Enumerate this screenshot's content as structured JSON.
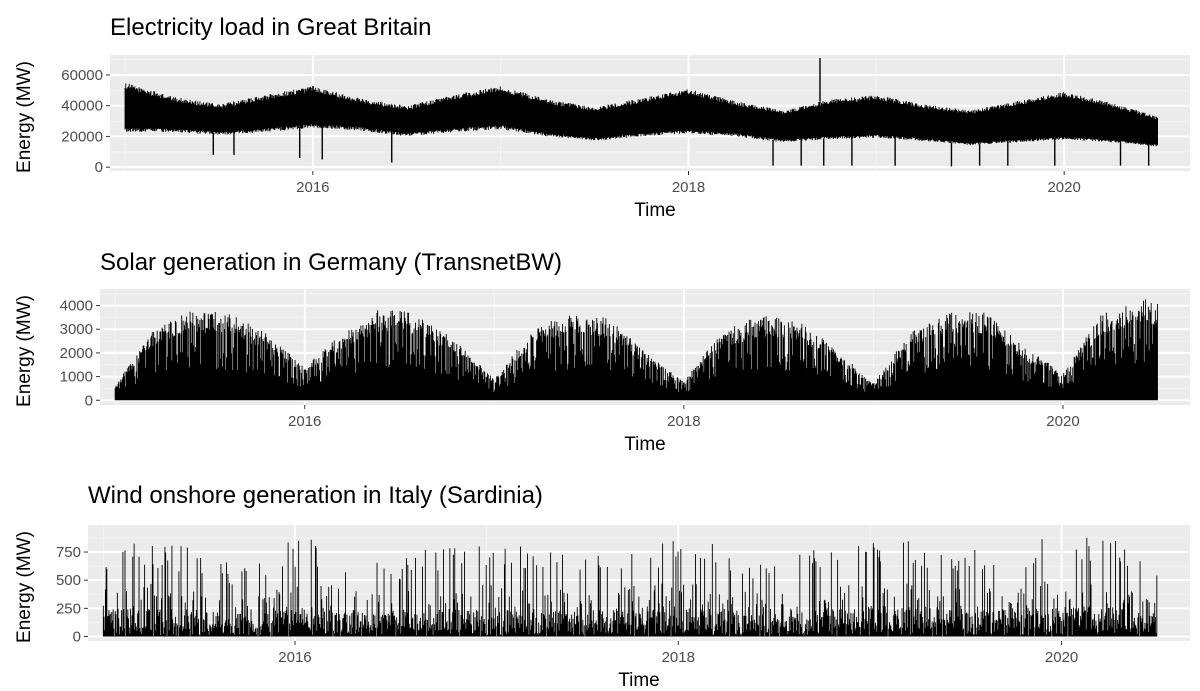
{
  "chart_data": [
    {
      "type": "line",
      "title": "Electricity load in Great Britain",
      "xlabel": "Time",
      "ylabel": "Energy (MW)",
      "xlim": [
        2014.92,
        2020.67
      ],
      "ylim": [
        -2500,
        73000
      ],
      "x_ticks": [
        2016,
        2018,
        2020
      ],
      "y_ticks": [
        0,
        20000,
        40000,
        60000
      ],
      "y_tick_labels": [
        "0",
        "20000",
        "40000",
        "60000"
      ],
      "grid": true,
      "series": [
        {
          "x": [
            2015.0,
            2015.25,
            2015.5,
            2015.75,
            2016.0,
            2016.25,
            2016.5,
            2016.75,
            2017.0,
            2017.25,
            2017.5,
            2017.75,
            2018.0,
            2018.25,
            2018.5,
            2018.75,
            2019.0,
            2019.25,
            2019.5,
            2019.75,
            2020.0,
            2020.25,
            2020.5
          ],
          "upper": [
            55000,
            46000,
            41000,
            47000,
            53000,
            45000,
            40000,
            47000,
            53000,
            44000,
            39000,
            45000,
            51000,
            43000,
            37000,
            44000,
            47000,
            41000,
            37000,
            43000,
            49000,
            42000,
            33000
          ],
          "lower": [
            24000,
            24000,
            22000,
            24000,
            27000,
            25000,
            21000,
            24000,
            26000,
            21000,
            18000,
            21000,
            23000,
            21000,
            17000,
            19000,
            20000,
            18000,
            15000,
            17000,
            19000,
            17000,
            14000
          ]
        }
      ],
      "dips": [
        [
          2015.47,
          8000
        ],
        [
          2015.58,
          8000
        ],
        [
          2015.93,
          6000
        ],
        [
          2016.05,
          5000
        ],
        [
          2016.42,
          3000
        ],
        [
          2018.45,
          1000
        ],
        [
          2018.6,
          1000
        ],
        [
          2018.72,
          1000
        ],
        [
          2018.87,
          1000
        ],
        [
          2019.1,
          1000
        ],
        [
          2019.4,
          500
        ],
        [
          2019.55,
          1000
        ],
        [
          2019.7,
          1000
        ],
        [
          2019.95,
          1000
        ],
        [
          2020.3,
          1000
        ],
        [
          2020.45,
          1000
        ]
      ],
      "spikes": [
        [
          2018.7,
          71000
        ]
      ]
    },
    {
      "type": "line",
      "title": "Solar generation in Germany (TransnetBW)",
      "xlabel": "Time",
      "ylabel": "Energy (MW)",
      "xlim": [
        2014.92,
        2020.67
      ],
      "ylim": [
        -200,
        4700
      ],
      "x_ticks": [
        2016,
        2018,
        2020
      ],
      "y_ticks": [
        0,
        1000,
        2000,
        3000,
        4000
      ],
      "y_tick_labels": [
        "0",
        "1000",
        "2000",
        "3000",
        "4000"
      ],
      "grid": true,
      "series": [
        {
          "x": [
            2015.0,
            2015.2,
            2015.4,
            2015.6,
            2015.8,
            2016.0,
            2016.2,
            2016.4,
            2016.6,
            2016.8,
            2017.0,
            2017.2,
            2017.4,
            2017.6,
            2017.8,
            2018.0,
            2018.2,
            2018.4,
            2018.6,
            2018.8,
            2019.0,
            2019.2,
            2019.4,
            2019.6,
            2019.8,
            2020.0,
            2020.2,
            2020.4,
            2020.5
          ],
          "upper": [
            600,
            3000,
            3800,
            3700,
            2800,
            1400,
            2900,
            3900,
            3700,
            2500,
            900,
            3000,
            3700,
            3500,
            2000,
            800,
            2900,
            3600,
            3400,
            2200,
            700,
            3000,
            3800,
            3700,
            2200,
            1200,
            3600,
            4300,
            4200
          ],
          "lower": [
            0,
            0,
            0,
            0,
            0,
            0,
            0,
            0,
            0,
            0,
            0,
            0,
            0,
            0,
            0,
            0,
            0,
            0,
            0,
            0,
            0,
            0,
            0,
            0,
            0,
            0,
            0,
            0,
            0
          ]
        }
      ],
      "dips": [],
      "spikes": []
    },
    {
      "type": "line",
      "title": "Wind onshore generation in Italy (Sardinia)",
      "xlabel": "Time",
      "ylabel": "Energy (MW)",
      "xlim": [
        2014.92,
        2020.67
      ],
      "ylim": [
        -40,
        990
      ],
      "x_ticks": [
        2016,
        2018,
        2020
      ],
      "y_ticks": [
        0,
        250,
        500,
        750
      ],
      "y_tick_labels": [
        "0",
        "250",
        "500",
        "750"
      ],
      "grid": true,
      "series": [
        {
          "x": [
            2015.0,
            2015.25,
            2015.5,
            2015.75,
            2016.0,
            2016.25,
            2016.5,
            2016.75,
            2017.0,
            2017.25,
            2017.5,
            2017.75,
            2018.0,
            2018.25,
            2018.5,
            2018.75,
            2019.0,
            2019.25,
            2019.5,
            2019.75,
            2020.0,
            2020.25,
            2020.5
          ],
          "upper": [
            820,
            860,
            780,
            600,
            880,
            820,
            700,
            800,
            880,
            820,
            760,
            840,
            880,
            800,
            680,
            800,
            900,
            860,
            780,
            840,
            920,
            880,
            700
          ],
          "lower": [
            0,
            0,
            0,
            0,
            0,
            0,
            0,
            0,
            0,
            0,
            0,
            0,
            0,
            0,
            0,
            0,
            0,
            0,
            0,
            0,
            0,
            0,
            0
          ]
        }
      ],
      "dips": [],
      "spikes": []
    }
  ]
}
